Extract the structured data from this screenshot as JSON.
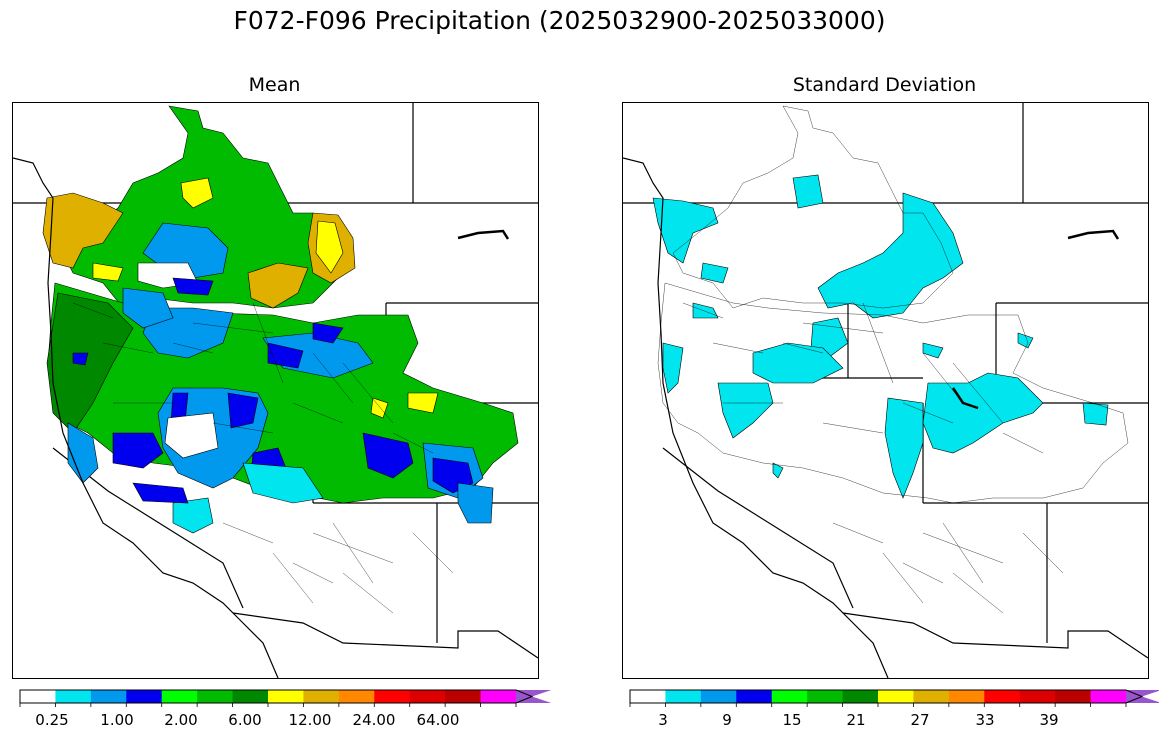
{
  "figure": {
    "title": "F072-F096 Precipitation (2025032900-2025033000)"
  },
  "panels": [
    {
      "title": "Mean",
      "colorbar": {
        "colors": [
          "#ffffff",
          "#00e5ee",
          "#0099ee",
          "#0000ee",
          "#00ff00",
          "#00bb00",
          "#008800",
          "#ffff00",
          "#e0b000",
          "#ff8800",
          "#ff0000",
          "#dd0000",
          "#bb0000",
          "#ff00ff",
          "#9955cc"
        ],
        "extend": "max",
        "tick_labels": [
          "0.25",
          "1.00",
          "2.00",
          "6.00",
          "12.00",
          "24.00",
          "64.00"
        ]
      }
    },
    {
      "title": "Standard Deviation",
      "colorbar": {
        "colors": [
          "#ffffff",
          "#00e5ee",
          "#0099ee",
          "#0000ee",
          "#00ff00",
          "#00bb00",
          "#008800",
          "#ffff00",
          "#e0b000",
          "#ff8800",
          "#ff0000",
          "#dd0000",
          "#bb0000",
          "#ff00ff",
          "#9955cc"
        ],
        "extend": "max",
        "tick_labels": [
          "3",
          "9",
          "15",
          "21",
          "27",
          "33",
          "39"
        ]
      }
    }
  ]
}
